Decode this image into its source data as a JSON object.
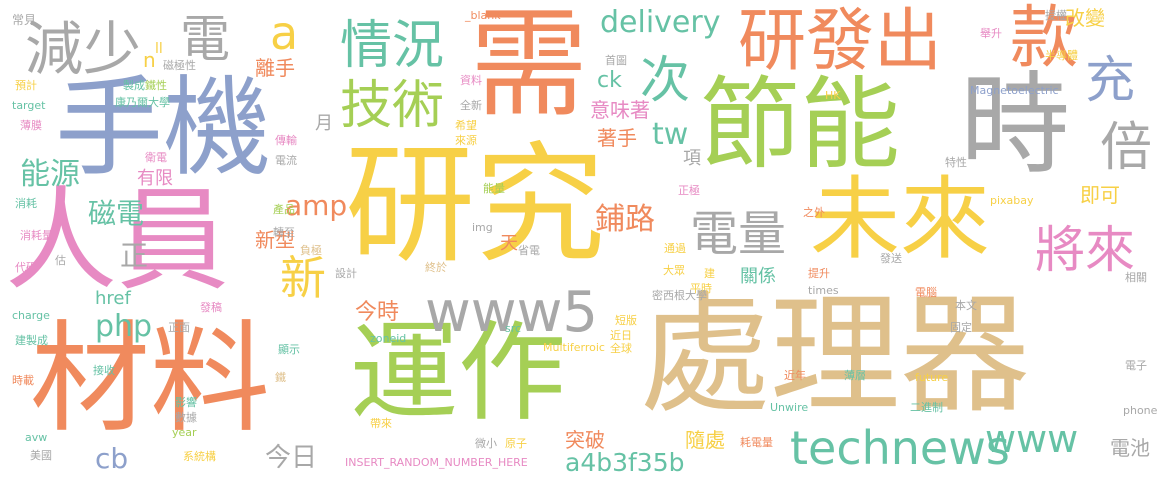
{
  "palette": {
    "orange": "#f08a5d",
    "yellow": "#f7d046",
    "green": "#a5cf55",
    "tan": "#dfc08b",
    "blue": "#8da0cb",
    "pink": "#e78ac3",
    "teal": "#66c2a5",
    "gray": "#a8a8a8"
  },
  "words": [
    "需",
    "處理器",
    "研究",
    "手機",
    "人員",
    "材料",
    "運作",
    "節能",
    "時",
    "未來",
    "研發出",
    "款",
    "減少",
    "電",
    "情況",
    "技術",
    "次",
    "充",
    "倍",
    "將來",
    "電量",
    "www5",
    "technews",
    "www",
    "新",
    "amp",
    "php",
    "能源",
    "磁電",
    "delivery",
    "a",
    "tw",
    "a4b3f35b",
    "href",
    "cb",
    "今日",
    "突破",
    "隨處",
    "電池",
    "鋪路",
    "即可",
    "改變",
    "意味著",
    "著手",
    "離手",
    "月",
    "有限",
    "正",
    "新型",
    "今時",
    "天",
    "項",
    "關係",
    "ck",
    "n",
    "ll",
    "常見",
    "_blank'",
    "授權",
    "首圖",
    "資料",
    "全新",
    "希望",
    "來源",
    "傳輸",
    "電流",
    "能量",
    "正極",
    "負極",
    "通過",
    "大眾",
    "建",
    "平時",
    "短版",
    "近日",
    "全球",
    "近年",
    "薄層",
    "Unwire",
    "future",
    "二進制",
    "電子",
    "phone",
    "耗電量",
    "原子",
    "微小",
    "帶來",
    "INSERT_RANDOM_NUMBER_HERE",
    "Multiferroic",
    "src",
    "zoneid",
    "顯示",
    "鐵",
    "影響",
    "數據",
    "year",
    "系統構",
    "美國",
    "avw",
    "時載",
    "接收",
    "建製成",
    "charge",
    "代碼",
    "消耗量",
    "消耗",
    "預計",
    "target",
    "薄膜",
    "衛電",
    "康乃爾大學",
    "製成",
    "鐵性",
    "磁極性",
    "產品",
    "轉至",
    "設計",
    "終於",
    "img",
    "發稿",
    "正面",
    "省電",
    "密西根大學",
    "times",
    "電腦",
    "本文",
    "固定",
    "相關",
    "提升",
    "發送",
    "之外",
    "pixabay",
    "特性",
    "HK",
    "Magnetoelectric",
    "半導體",
    "舉升",
    "估"
  ]
}
